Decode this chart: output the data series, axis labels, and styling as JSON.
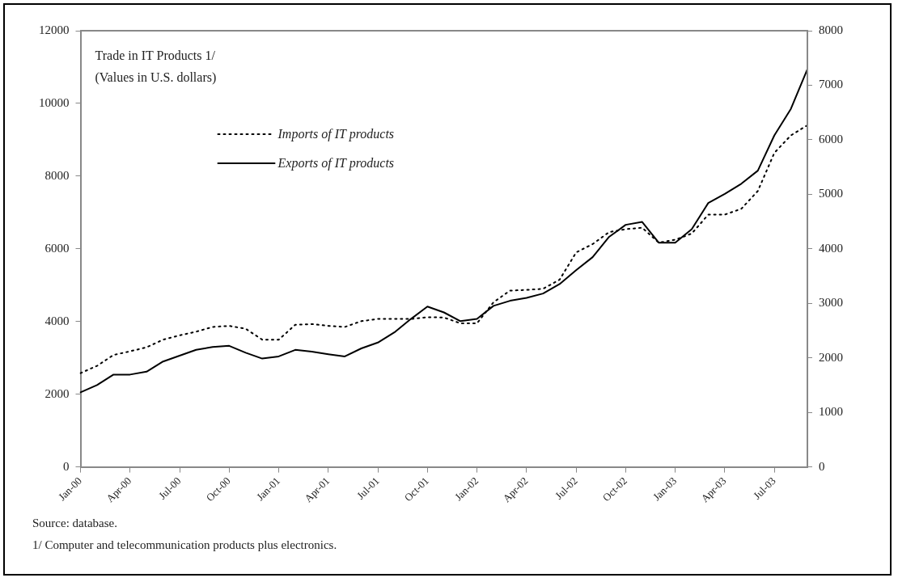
{
  "chart_data": {
    "type": "line",
    "title": "Trade in IT Products 1/",
    "subtitle": "(Values in U.S. dollars)",
    "categories": [
      "Jan-00",
      null,
      null,
      "Apr-00",
      null,
      null,
      "Jul-00",
      null,
      null,
      "Oct-00",
      null,
      null,
      "Jan-01",
      null,
      null,
      "Apr-01",
      null,
      null,
      "Jul-01",
      null,
      null,
      "Oct-01",
      null,
      null,
      "Jan-02",
      null,
      null,
      "Apr-02",
      null,
      null,
      "Jul-02",
      null,
      null,
      "Oct-02",
      null,
      null,
      "Jan-03",
      null,
      null,
      "Apr-03",
      null,
      null,
      "Jul-03",
      null,
      null
    ],
    "series": [
      {
        "name": "Imports of IT products",
        "color": "#000000",
        "line_style": "dotted",
        "values": [
          2580,
          2780,
          3080,
          3180,
          3290,
          3500,
          3620,
          3720,
          3850,
          3880,
          3800,
          3500,
          3500,
          3910,
          3930,
          3880,
          3850,
          4010,
          4070,
          4070,
          4070,
          4120,
          4110,
          3950,
          3950,
          4530,
          4850,
          4870,
          4900,
          5150,
          5900,
          6130,
          6460,
          6540,
          6580,
          6170,
          6250,
          6420,
          6940,
          6940,
          7100,
          7590,
          8640,
          9120,
          9400
        ]
      },
      {
        "name": "Exports of IT products",
        "color": "#000000",
        "line_style": "solid",
        "values": [
          2050,
          2250,
          2540,
          2540,
          2620,
          2900,
          3060,
          3220,
          3300,
          3330,
          3140,
          2980,
          3040,
          3220,
          3170,
          3100,
          3040,
          3260,
          3420,
          3700,
          4070,
          4410,
          4250,
          4010,
          4070,
          4430,
          4570,
          4650,
          4770,
          5030,
          5410,
          5770,
          6330,
          6660,
          6740,
          6170,
          6170,
          6540,
          7260,
          7510,
          7790,
          8150,
          9120,
          9850,
          10940
        ]
      }
    ],
    "ylim": [
      0,
      12000
    ],
    "yticks": [
      0,
      2000,
      4000,
      6000,
      8000,
      10000,
      12000
    ],
    "y2lim": [
      0,
      8000
    ],
    "y2ticks": [
      0,
      1000,
      2000,
      3000,
      4000,
      5000,
      6000,
      7000,
      8000
    ],
    "legend": "top",
    "marker": "none",
    "grid": false,
    "annotations": [
      "Source: database.",
      "1/ Computer and telecommunication products plus electronics."
    ]
  }
}
